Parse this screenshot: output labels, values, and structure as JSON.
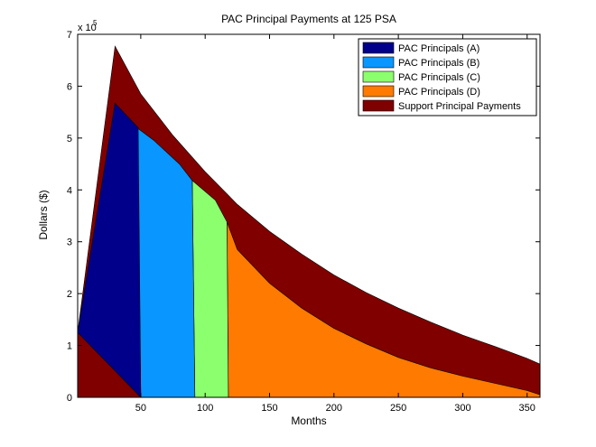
{
  "figure": {
    "title": "PAC Principal Payments at 125 PSA",
    "xlabel": "Months",
    "ylabel": "Dollars ($)",
    "exponent_base": "x 10",
    "exponent_power": "5"
  },
  "chart_data": {
    "type": "area",
    "title": "PAC Principal Payments at 125 PSA",
    "xlabel": "Months",
    "ylabel": "Dollars ($)",
    "y_scale_multiplier": 100000,
    "xlim": [
      1,
      360
    ],
    "ylim": [
      0,
      7
    ],
    "xticks": [
      50,
      100,
      150,
      200,
      250,
      300,
      350
    ],
    "yticks": [
      0,
      1,
      2,
      3,
      4,
      5,
      6,
      7
    ],
    "grid": false,
    "legend_position": "top-right",
    "series": [
      {
        "name": "PAC Principals (A)",
        "color": "#00008B",
        "points": [
          [
            1,
            1.25
          ],
          [
            30,
            5.67
          ],
          [
            48,
            5.2
          ],
          [
            50,
            0
          ]
        ]
      },
      {
        "name": "PAC Principals (B)",
        "color": "#0A96FF",
        "points": [
          [
            47,
            5.2
          ],
          [
            60,
            4.96
          ],
          [
            80,
            4.5
          ],
          [
            90,
            4.18
          ],
          [
            92,
            0
          ],
          [
            50,
            0
          ]
        ]
      },
      {
        "name": "PAC Principals (C)",
        "color": "#8CFF6E",
        "points": [
          [
            90,
            4.18
          ],
          [
            108,
            3.8
          ],
          [
            117,
            3.38
          ],
          [
            118,
            0
          ],
          [
            92,
            0
          ]
        ]
      },
      {
        "name": "PAC Principals (D)",
        "color": "#FF7A00",
        "points": [
          [
            117,
            3.38
          ],
          [
            125,
            2.85
          ],
          [
            150,
            2.2
          ],
          [
            175,
            1.72
          ],
          [
            200,
            1.33
          ],
          [
            225,
            1.03
          ],
          [
            250,
            0.77
          ],
          [
            275,
            0.57
          ],
          [
            300,
            0.41
          ],
          [
            325,
            0.27
          ],
          [
            350,
            0.13
          ],
          [
            360,
            0.05
          ],
          [
            360,
            0
          ],
          [
            118,
            0
          ]
        ]
      },
      {
        "name": "Support Principal Payments",
        "color": "#800000",
        "points": [
          [
            1,
            1.25
          ],
          [
            30,
            6.77
          ],
          [
            50,
            5.85
          ],
          [
            75,
            5.05
          ],
          [
            100,
            4.35
          ],
          [
            125,
            3.72
          ],
          [
            150,
            3.2
          ],
          [
            175,
            2.76
          ],
          [
            200,
            2.36
          ],
          [
            225,
            2.02
          ],
          [
            250,
            1.72
          ],
          [
            275,
            1.45
          ],
          [
            300,
            1.2
          ],
          [
            325,
            0.98
          ],
          [
            350,
            0.75
          ],
          [
            360,
            0.64
          ],
          [
            360,
            0
          ],
          [
            1,
            0
          ]
        ]
      }
    ]
  }
}
